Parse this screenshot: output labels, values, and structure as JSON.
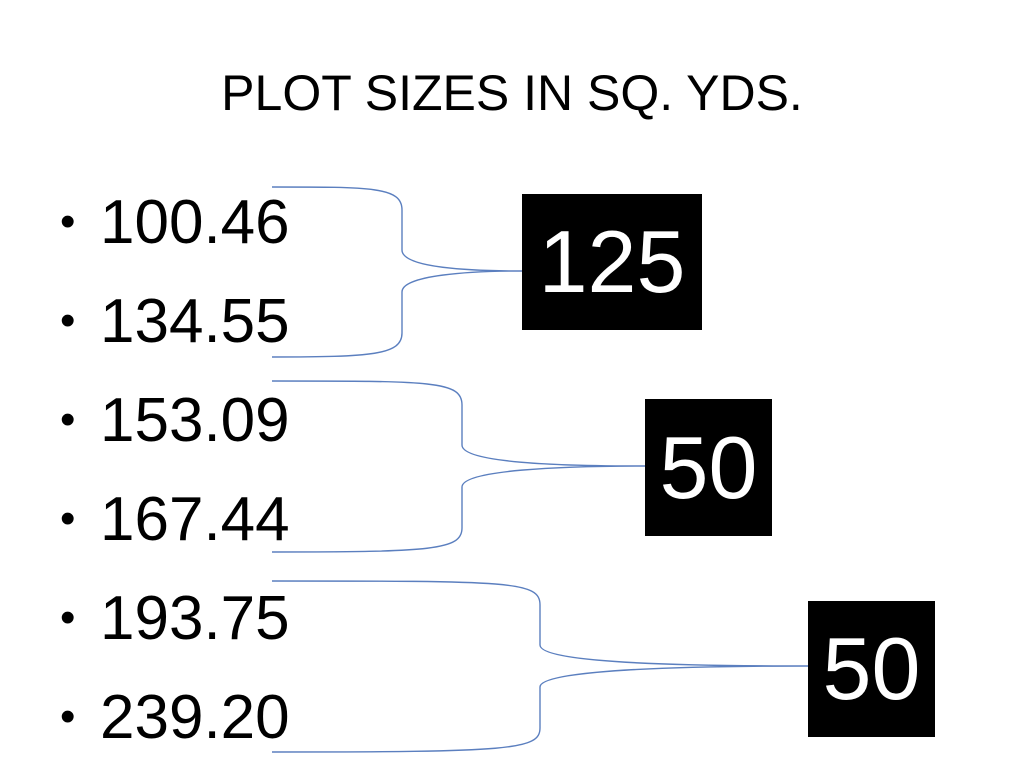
{
  "title": "PLOT SIZES IN SQ. YDS.",
  "bullet_symbol": "•",
  "plot_sizes": [
    "100.46",
    "134.55",
    "153.09",
    "167.44",
    "193.75",
    "239.20"
  ],
  "interval_boxes": [
    "125",
    "50",
    "50"
  ],
  "colors": {
    "bracket": "#5b7fbf",
    "box": "#000000",
    "box_text": "#ffffff"
  }
}
